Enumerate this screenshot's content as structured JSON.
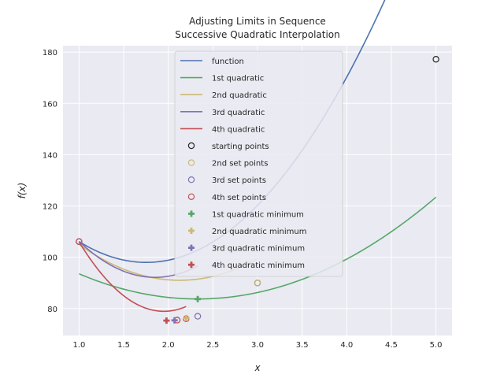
{
  "chart_data": {
    "type": "line",
    "title": "Adjusting Limits in Sequence",
    "subtitle": "Successive Quadratic Interpolation",
    "xlabel": "x",
    "ylabel": "f(x)",
    "xlim": [
      0.82,
      5.18
    ],
    "ylim": [
      69.5,
      182.5
    ],
    "xticks": [
      "1.0",
      "1.5",
      "2.0",
      "2.5",
      "3.0",
      "3.5",
      "4.0",
      "4.5",
      "5.0"
    ],
    "yticks": [
      "80",
      "100",
      "120",
      "140",
      "160",
      "180"
    ],
    "grid": true,
    "legend_position": "upper-center",
    "lines": [
      {
        "name": "function",
        "color": "#4C72B0",
        "quad": [
          14.32,
          -50.22,
          142.02
        ],
        "x_range": [
          1.0,
          5.0
        ]
      },
      {
        "name": "1st quadratic",
        "color": "#55A868",
        "quad": [
          5.56,
          -25.89,
          113.88
        ],
        "x_range": [
          1.0,
          5.0
        ]
      },
      {
        "name": "2nd quadratic",
        "color": "#CCB974",
        "quad": [
          11.0,
          -46.8,
          140.8
        ],
        "x_range": [
          1.0,
          3.0
        ]
      },
      {
        "name": "3rd quadratic",
        "color": "#8172B2",
        "quad": [
          19.4,
          -71.8,
          158.6
        ],
        "x_range": [
          1.0,
          2.33
        ]
      },
      {
        "name": "4th quadratic",
        "color": "#C44E52",
        "quad": [
          30.0,
          -117.0,
          193.0
        ],
        "x_range": [
          1.0,
          2.2
        ]
      }
    ],
    "point_sets": [
      {
        "name": "starting points",
        "color": "#262626",
        "points": [
          [
            1.0,
            106.1
          ],
          [
            3.0,
            90.0
          ],
          [
            5.0,
            177.2
          ]
        ]
      },
      {
        "name": "2nd set points",
        "color": "#CCB974",
        "points": [
          [
            1.0,
            106.1
          ],
          [
            2.33,
            77.0
          ],
          [
            3.0,
            90.0
          ]
        ]
      },
      {
        "name": "3rd set points",
        "color": "#8172B2",
        "points": [
          [
            1.0,
            106.1
          ],
          [
            2.1,
            75.5
          ],
          [
            2.33,
            77.0
          ]
        ]
      },
      {
        "name": "4th set points",
        "color": "#C44E52",
        "points": [
          [
            1.0,
            106.1
          ],
          [
            2.1,
            75.5
          ],
          [
            2.2,
            76.0
          ]
        ]
      }
    ],
    "minima": [
      {
        "name": "1st quadratic minimum",
        "color": "#55A868",
        "x": 2.33,
        "y": 83.7
      },
      {
        "name": "2nd quadratic minimum",
        "color": "#CCB974",
        "x": 2.2,
        "y": 76.3
      },
      {
        "name": "3rd quadratic minimum",
        "color": "#8172B2",
        "x": 2.07,
        "y": 75.4
      },
      {
        "name": "4th quadratic minimum",
        "color": "#C44E52",
        "x": 1.98,
        "y": 75.3
      }
    ]
  }
}
